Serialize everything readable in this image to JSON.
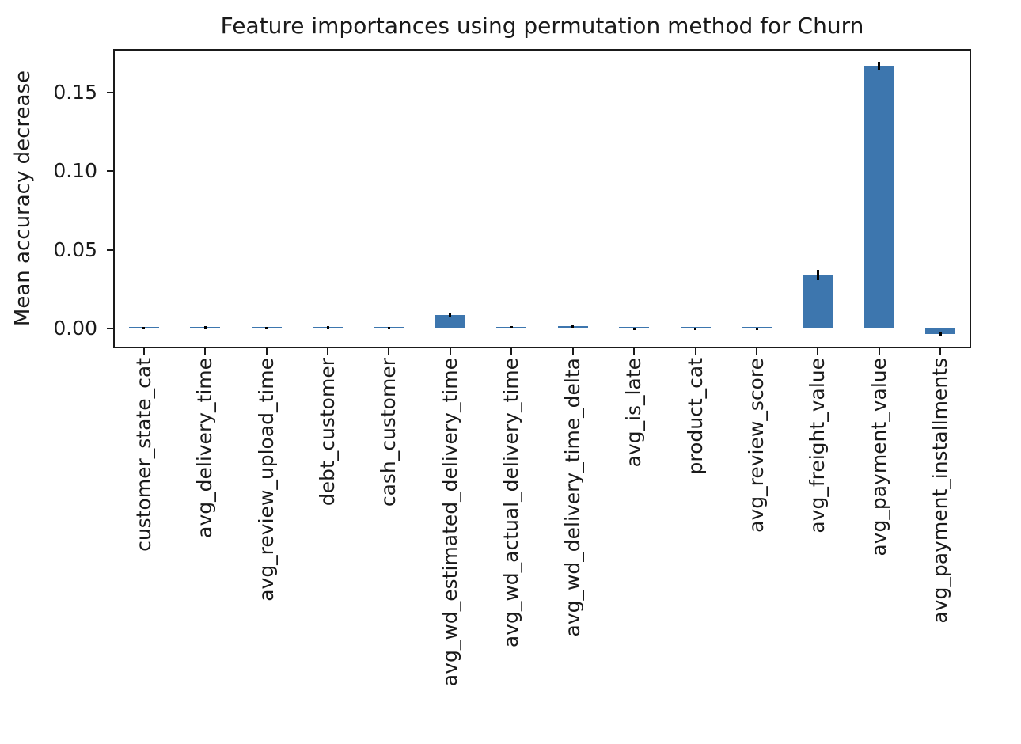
{
  "figure": {
    "background_color": "#ffffff",
    "text_color": "#1a1a1a",
    "axis_color": "#1a1a1a"
  },
  "chart_data": {
    "type": "bar",
    "title": "Feature importances using permutation method for Churn",
    "xlabel": "",
    "ylabel": "Mean accuracy decrease",
    "categories": [
      "customer_state_cat",
      "avg_delivery_time",
      "avg_review_upload_time",
      "debt_customer",
      "cash_customer",
      "avg_wd_estimated_delivery_time",
      "avg_wd_actual_delivery_time",
      "avg_wd_delivery_time_delta",
      "avg_is_late",
      "product_cat",
      "avg_review_score",
      "avg_freight_value",
      "avg_payment_value",
      "avg_payment_installments"
    ],
    "values": [
      0.0002,
      0.0008,
      0.0002,
      0.0008,
      0.0002,
      0.0085,
      0.0008,
      0.0015,
      0.0003,
      0.0,
      0.0,
      0.034,
      0.167,
      -0.0035
    ],
    "errors": [
      0.0008,
      0.001,
      0.0008,
      0.001,
      0.0008,
      0.0012,
      0.0008,
      0.001,
      0.0005,
      0.0004,
      0.0004,
      0.0035,
      0.0025,
      0.001
    ],
    "yticks": [
      {
        "value": 0.0,
        "label": "0.00"
      },
      {
        "value": 0.05,
        "label": "0.05"
      },
      {
        "value": 0.1,
        "label": "0.10"
      },
      {
        "value": 0.15,
        "label": "0.15"
      }
    ],
    "ylim": [
      -0.0125,
      0.1775
    ],
    "bar_color": "#3d76ae",
    "error_color": "#000000",
    "grid": false,
    "legend": null,
    "x_tick_rotation": 90
  }
}
